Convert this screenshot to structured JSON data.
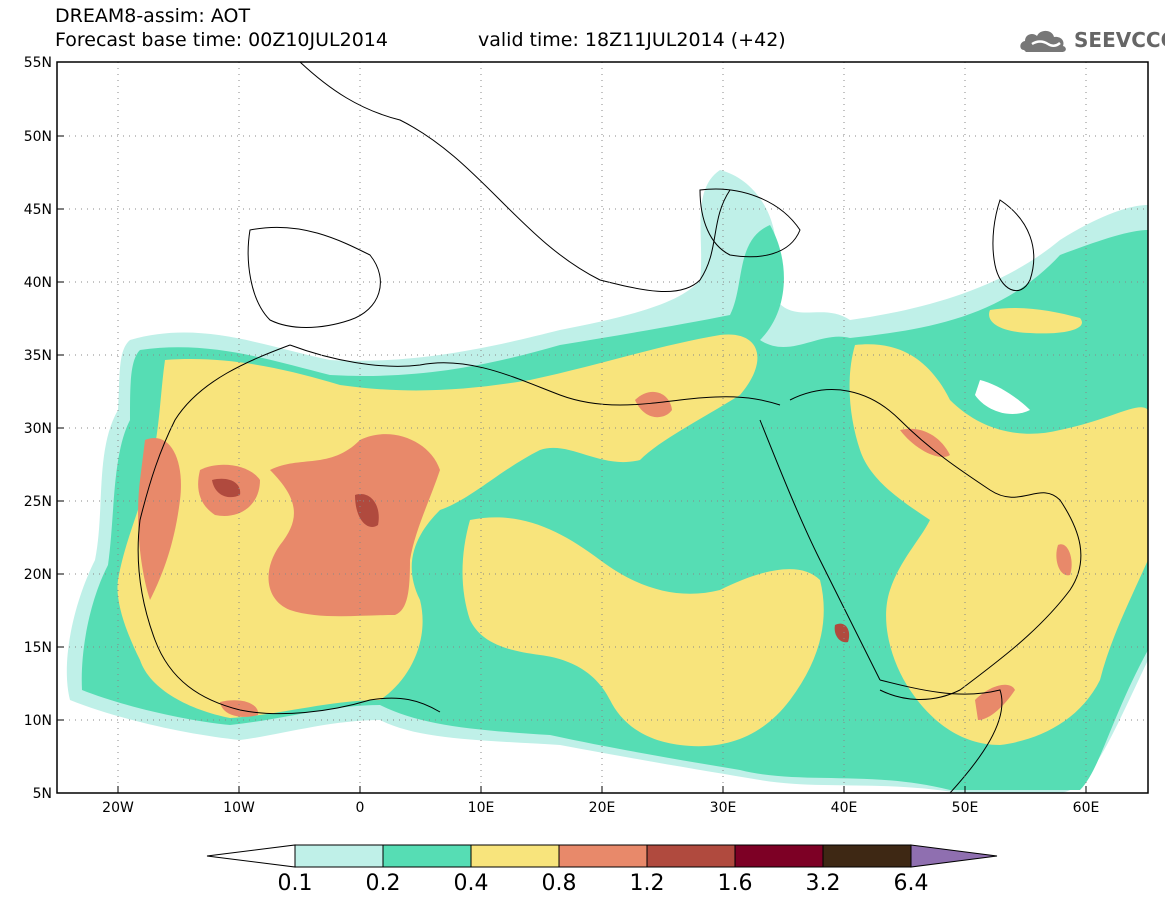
{
  "header": {
    "model_title": "DREAM8-assim: AOT",
    "base_time": "Forecast base time: 00Z10JUL2014",
    "valid_time": "valid time: 18Z11JUL2014 (+42)",
    "logo_text": "SEEVCCC"
  },
  "map": {
    "projection": "lat-lon",
    "lon_range": [
      -25,
      65
    ],
    "lat_range": [
      5,
      55
    ],
    "lat_ticks": [
      "55N",
      "50N",
      "45N",
      "40N",
      "35N",
      "30N",
      "25N",
      "20N",
      "15N",
      "10N",
      "5N"
    ],
    "lon_ticks": [
      "20W",
      "10W",
      "0",
      "10E",
      "20E",
      "30E",
      "40E",
      "50E",
      "60E"
    ],
    "grid": "dotted"
  },
  "colorbar": {
    "labels": [
      "0.1",
      "0.2",
      "0.4",
      "0.8",
      "1.2",
      "1.6",
      "3.2",
      "6.4"
    ],
    "colors": [
      "#ffffff",
      "#bff0e8",
      "#56ddb4",
      "#f8e47c",
      "#e8896a",
      "#b04a3e",
      "#7d0025",
      "#3e2814",
      "#8f6fb0"
    ]
  }
}
